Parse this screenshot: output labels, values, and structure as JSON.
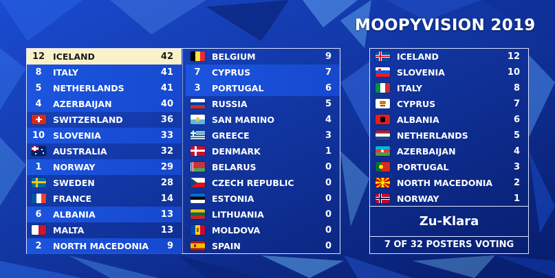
{
  "title": "MOOPYVISION 2019",
  "scoreboard": {
    "left": [
      {
        "received": "12",
        "country": "ICELAND",
        "score": "42",
        "highlight": "top"
      },
      {
        "received": "8",
        "country": "ITALY",
        "score": "41",
        "highlight": "lit"
      },
      {
        "received": "5",
        "country": "NETHERLANDS",
        "score": "41",
        "highlight": "lit"
      },
      {
        "received": "4",
        "country": "AZERBAIJAN",
        "score": "40",
        "highlight": "lit"
      },
      {
        "received": "",
        "flag": "switzerland",
        "country": "SWITZERLAND",
        "score": "36",
        "highlight": "none"
      },
      {
        "received": "10",
        "country": "SLOVENIA",
        "score": "33",
        "highlight": "lit"
      },
      {
        "received": "",
        "flag": "australia",
        "country": "AUSTRALIA",
        "score": "32",
        "highlight": "none"
      },
      {
        "received": "1",
        "country": "NORWAY",
        "score": "29",
        "highlight": "lit"
      },
      {
        "received": "",
        "flag": "sweden",
        "country": "SWEDEN",
        "score": "28",
        "highlight": "none"
      },
      {
        "received": "",
        "flag": "france",
        "country": "FRANCE",
        "score": "14",
        "highlight": "none"
      },
      {
        "received": "6",
        "country": "ALBANIA",
        "score": "13",
        "highlight": "lit"
      },
      {
        "received": "",
        "flag": "malta",
        "country": "MALTA",
        "score": "13",
        "highlight": "none"
      },
      {
        "received": "2",
        "country": "NORTH MACEDONIA",
        "score": "9",
        "highlight": "lit"
      }
    ],
    "right": [
      {
        "received": "",
        "flag": "belgium",
        "country": "BELGIUM",
        "score": "9",
        "highlight": "none"
      },
      {
        "received": "7",
        "country": "CYPRUS",
        "score": "7",
        "highlight": "lit"
      },
      {
        "received": "3",
        "country": "PORTUGAL",
        "score": "6",
        "highlight": "lit"
      },
      {
        "received": "",
        "flag": "russia",
        "country": "RUSSIA",
        "score": "5",
        "highlight": "none"
      },
      {
        "received": "",
        "flag": "san-marino",
        "country": "SAN MARINO",
        "score": "4",
        "highlight": "none"
      },
      {
        "received": "",
        "flag": "greece",
        "country": "GREECE",
        "score": "3",
        "highlight": "none"
      },
      {
        "received": "",
        "flag": "denmark",
        "country": "DENMARK",
        "score": "1",
        "highlight": "none"
      },
      {
        "received": "",
        "flag": "belarus",
        "country": "BELARUS",
        "score": "0",
        "highlight": "none"
      },
      {
        "received": "",
        "flag": "czech-republic",
        "country": "CZECH REPUBLIC",
        "score": "0",
        "highlight": "none"
      },
      {
        "received": "",
        "flag": "estonia",
        "country": "ESTONIA",
        "score": "0",
        "highlight": "none"
      },
      {
        "received": "",
        "flag": "lithuania",
        "country": "LITHUANIA",
        "score": "0",
        "highlight": "none"
      },
      {
        "received": "",
        "flag": "moldova",
        "country": "MOLDOVA",
        "score": "0",
        "highlight": "none"
      },
      {
        "received": "",
        "flag": "spain",
        "country": "SPAIN",
        "score": "0",
        "highlight": "none"
      }
    ]
  },
  "voter_panel": {
    "votes": [
      {
        "flag": "iceland",
        "country": "ICELAND",
        "points": "12"
      },
      {
        "flag": "slovenia",
        "country": "SLOVENIA",
        "points": "10"
      },
      {
        "flag": "italy",
        "country": "ITALY",
        "points": "8"
      },
      {
        "flag": "cyprus",
        "country": "CYPRUS",
        "points": "7"
      },
      {
        "flag": "albania",
        "country": "ALBANIA",
        "points": "6"
      },
      {
        "flag": "netherlands",
        "country": "NETHERLANDS",
        "points": "5"
      },
      {
        "flag": "azerbaijan",
        "country": "AZERBAIJAN",
        "points": "4"
      },
      {
        "flag": "portugal",
        "country": "PORTUGAL",
        "points": "3"
      },
      {
        "flag": "north-macedonia",
        "country": "NORTH MACEDONIA",
        "points": "2"
      },
      {
        "flag": "norway",
        "country": "NORWAY",
        "points": "1"
      }
    ],
    "voter_name": "Zu-Klara",
    "voting_status": "7 OF 32 POSTERS VOTING"
  },
  "colors": {
    "background": "#0b2a8c",
    "highlight_row": "#1c56e0",
    "top_row": "#fbf1c9",
    "text": "#ffffff",
    "border": "#dfe6ff"
  }
}
